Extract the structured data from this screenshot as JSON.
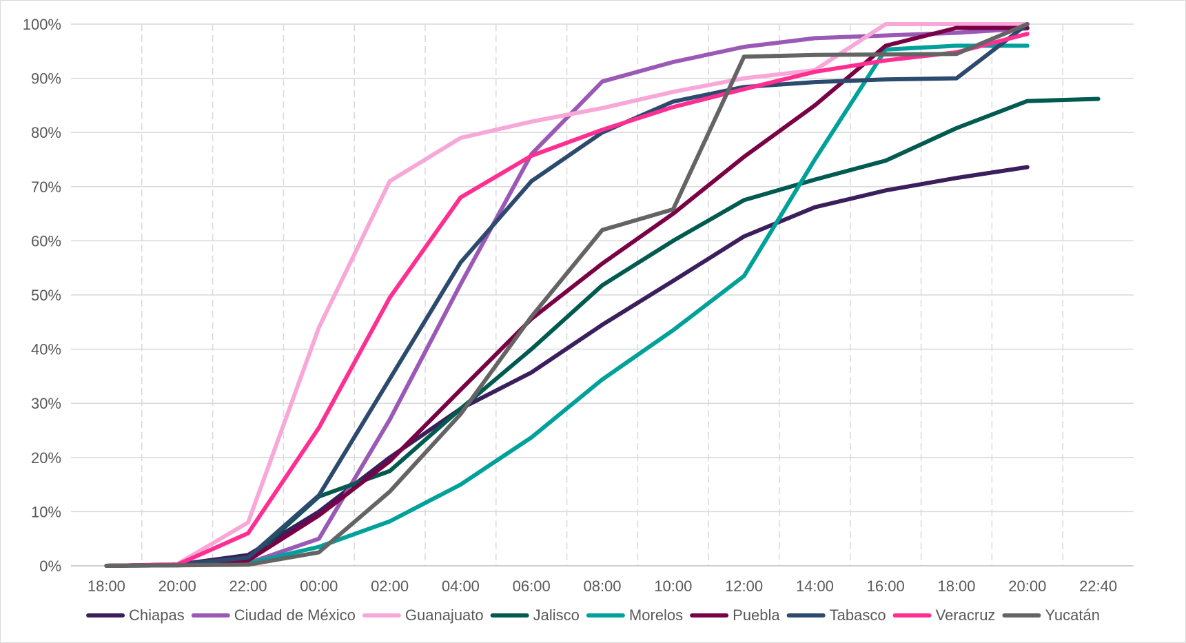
{
  "chart_data": {
    "type": "line",
    "title": "",
    "xlabel": "",
    "ylabel": "",
    "categories": [
      "18:00",
      "20:00",
      "22:00",
      "00:00",
      "02:00",
      "04:00",
      "06:00",
      "08:00",
      "10:00",
      "12:00",
      "14:00",
      "16:00",
      "18:00",
      "20:00",
      "22:40"
    ],
    "y_ticks": [
      "0%",
      "10%",
      "20%",
      "30%",
      "40%",
      "50%",
      "60%",
      "70%",
      "80%",
      "90%",
      "100%"
    ],
    "ylim": [
      0,
      100
    ],
    "y_unit": "%",
    "grid": {
      "horizontal": "solid",
      "vertical": "dashed"
    },
    "legend_position": "bottom",
    "series": [
      {
        "name": "Chiapas",
        "color": "#3b1f5c",
        "values": [
          0,
          0.2,
          2,
          10,
          20,
          29,
          35.7,
          44.5,
          52.6,
          60.8,
          66.2,
          69.3,
          71.6,
          73.6,
          null
        ]
      },
      {
        "name": "Ciudad de México",
        "color": "#9b59b6",
        "values": [
          0,
          0.1,
          0.5,
          5,
          27,
          52,
          76,
          89.4,
          93,
          95.8,
          97.4,
          97.9,
          98.4,
          99.2,
          null
        ]
      },
      {
        "name": "Guanajuato",
        "color": "#f7a8d8",
        "values": [
          0,
          0.3,
          8,
          44,
          71,
          79,
          82,
          84.5,
          87.5,
          90,
          91.5,
          100,
          100,
          100,
          null
        ]
      },
      {
        "name": "Jalisco",
        "color": "#005a50",
        "values": [
          0,
          0.2,
          1,
          12.8,
          17.5,
          29,
          40,
          51.8,
          60,
          67.5,
          71.3,
          74.8,
          80.8,
          85.8,
          86.2
        ]
      },
      {
        "name": "Morelos",
        "color": "#00a19a",
        "values": [
          0,
          0.1,
          0.5,
          3.5,
          8.2,
          15,
          23.7,
          34.4,
          43.5,
          53.5,
          75,
          95.3,
          96,
          96,
          null
        ]
      },
      {
        "name": "Puebla",
        "color": "#7a0045",
        "values": [
          0,
          0.2,
          1,
          9.3,
          19.3,
          32.5,
          45.6,
          55.8,
          65,
          75.5,
          85,
          96,
          99.3,
          99.3,
          null
        ]
      },
      {
        "name": "Tabasco",
        "color": "#2c4a6e",
        "values": [
          0,
          0.2,
          1.5,
          13,
          34.5,
          56,
          71,
          80,
          85.7,
          88.4,
          89.3,
          89.8,
          90,
          100,
          null
        ]
      },
      {
        "name": "Veracruz",
        "color": "#ff2f92",
        "values": [
          0,
          0.2,
          6,
          25.5,
          49.5,
          68,
          75.7,
          80.5,
          84.7,
          88,
          91.2,
          93.3,
          94.8,
          98.2,
          null
        ]
      },
      {
        "name": "Yucatán",
        "color": "#646464",
        "values": [
          0,
          0.1,
          0.2,
          2.5,
          13.7,
          28,
          46,
          62,
          65.8,
          94,
          94.3,
          94.4,
          94.5,
          100,
          null
        ]
      }
    ]
  }
}
